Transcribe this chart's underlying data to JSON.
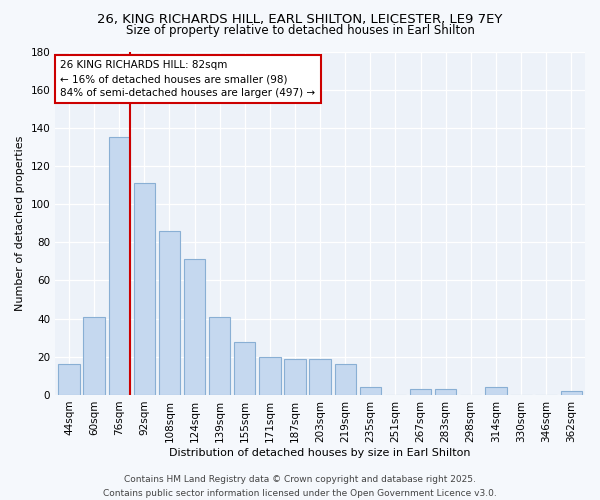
{
  "title1": "26, KING RICHARDS HILL, EARL SHILTON, LEICESTER, LE9 7EY",
  "title2": "Size of property relative to detached houses in Earl Shilton",
  "xlabel": "Distribution of detached houses by size in Earl Shilton",
  "ylabel": "Number of detached properties",
  "categories": [
    "44sqm",
    "60sqm",
    "76sqm",
    "92sqm",
    "108sqm",
    "124sqm",
    "139sqm",
    "155sqm",
    "171sqm",
    "187sqm",
    "203sqm",
    "219sqm",
    "235sqm",
    "251sqm",
    "267sqm",
    "283sqm",
    "298sqm",
    "314sqm",
    "330sqm",
    "346sqm",
    "362sqm"
  ],
  "values": [
    16,
    41,
    135,
    111,
    86,
    71,
    41,
    28,
    20,
    19,
    19,
    16,
    4,
    0,
    3,
    3,
    0,
    4,
    0,
    0,
    2
  ],
  "bar_color": "#c5d8ef",
  "bar_edge_color": "#89afd4",
  "vline_color": "#cc0000",
  "vline_index": 2,
  "annotation_title": "26 KING RICHARDS HILL: 82sqm",
  "annotation_line1": "← 16% of detached houses are smaller (98)",
  "annotation_line2": "84% of semi-detached houses are larger (497) →",
  "annotation_box_color": "#ffffff",
  "annotation_box_edge": "#cc0000",
  "ylim": [
    0,
    180
  ],
  "yticks": [
    0,
    20,
    40,
    60,
    80,
    100,
    120,
    140,
    160,
    180
  ],
  "footer1": "Contains HM Land Registry data © Crown copyright and database right 2025.",
  "footer2": "Contains public sector information licensed under the Open Government Licence v3.0.",
  "bg_color": "#f5f8fc",
  "plot_bg_color": "#edf2f9",
  "grid_color": "#ffffff",
  "title_fontsize": 9.5,
  "subtitle_fontsize": 8.5,
  "axis_label_fontsize": 8,
  "tick_fontsize": 7.5,
  "annotation_fontsize": 7.5,
  "footer_fontsize": 6.5
}
